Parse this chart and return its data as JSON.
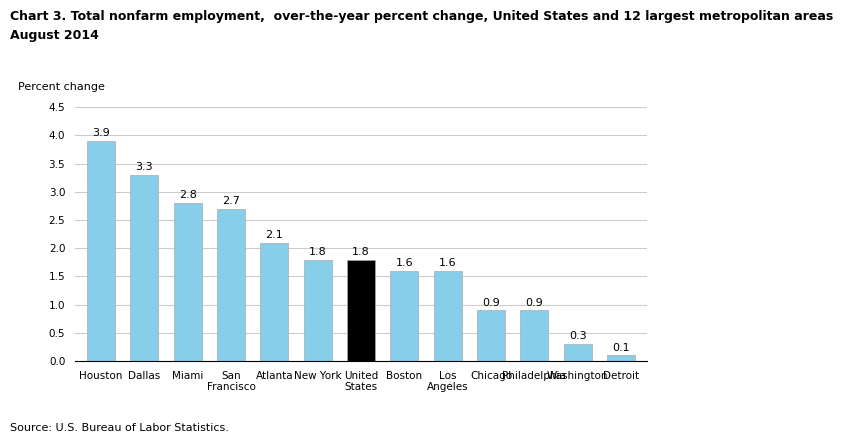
{
  "title_line1": "Chart 3. Total nonfarm employment,  over-the-year percent change, United States and 12 largest metropolitan areas",
  "title_line2": "August 2014",
  "ylabel": "Percent change",
  "source": "Source: U.S. Bureau of Labor Statistics.",
  "categories": [
    "Houston",
    "Dallas",
    "Miami",
    "San\nFrancisco",
    "Atlanta",
    "New York",
    "United\nStates",
    "Boston",
    "Los\nAngeles",
    "Chicago",
    "Philadelphia",
    "Washington",
    "Detroit"
  ],
  "values": [
    3.9,
    3.3,
    2.8,
    2.7,
    2.1,
    1.8,
    1.8,
    1.6,
    1.6,
    0.9,
    0.9,
    0.3,
    0.1
  ],
  "bar_colors": [
    "#87CEEB",
    "#87CEEB",
    "#87CEEB",
    "#87CEEB",
    "#87CEEB",
    "#87CEEB",
    "#000000",
    "#87CEEB",
    "#87CEEB",
    "#87CEEB",
    "#87CEEB",
    "#87CEEB",
    "#87CEEB"
  ],
  "ylim": [
    0,
    4.5
  ],
  "yticks": [
    0.0,
    0.5,
    1.0,
    1.5,
    2.0,
    2.5,
    3.0,
    3.5,
    4.0,
    4.5
  ],
  "grid_color": "#cccccc",
  "title_fontsize": 9.0,
  "label_fontsize": 8.0,
  "tick_fontsize": 7.5,
  "value_fontsize": 8.0,
  "source_fontsize": 8.0
}
